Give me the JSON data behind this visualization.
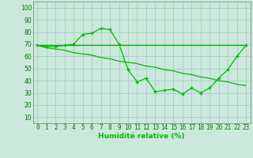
{
  "x": [
    0,
    1,
    2,
    3,
    4,
    5,
    6,
    7,
    8,
    9,
    10,
    11,
    12,
    13,
    14,
    15,
    16,
    17,
    18,
    19,
    20,
    21,
    22,
    23
  ],
  "y_main": [
    69,
    68,
    68,
    69,
    70,
    78,
    79,
    83,
    82,
    70,
    49,
    39,
    42,
    31,
    32,
    33,
    29,
    34,
    30,
    34,
    42,
    49,
    60,
    69
  ],
  "y_flat": [
    69,
    69,
    69,
    69,
    69,
    69,
    69,
    69,
    69,
    69,
    69,
    69,
    69,
    69,
    69,
    69,
    69,
    69,
    69,
    69,
    69,
    69,
    69,
    69
  ],
  "y_trend": [
    69,
    67,
    66,
    65,
    63,
    62,
    61,
    59,
    58,
    56,
    55,
    54,
    52,
    51,
    49,
    48,
    46,
    45,
    43,
    42,
    40,
    39,
    37,
    36
  ],
  "line_color": "#00bb00",
  "bg_color": "#cce8dc",
  "grid_color": "#99ccbb",
  "xlabel": "Humidité relative (%)",
  "ylabel_ticks": [
    10,
    20,
    30,
    40,
    50,
    60,
    70,
    80,
    90,
    100
  ],
  "xlim": [
    -0.5,
    23.5
  ],
  "ylim": [
    5,
    105
  ],
  "xlabel_fontsize": 6.5,
  "tick_fontsize": 5.5
}
